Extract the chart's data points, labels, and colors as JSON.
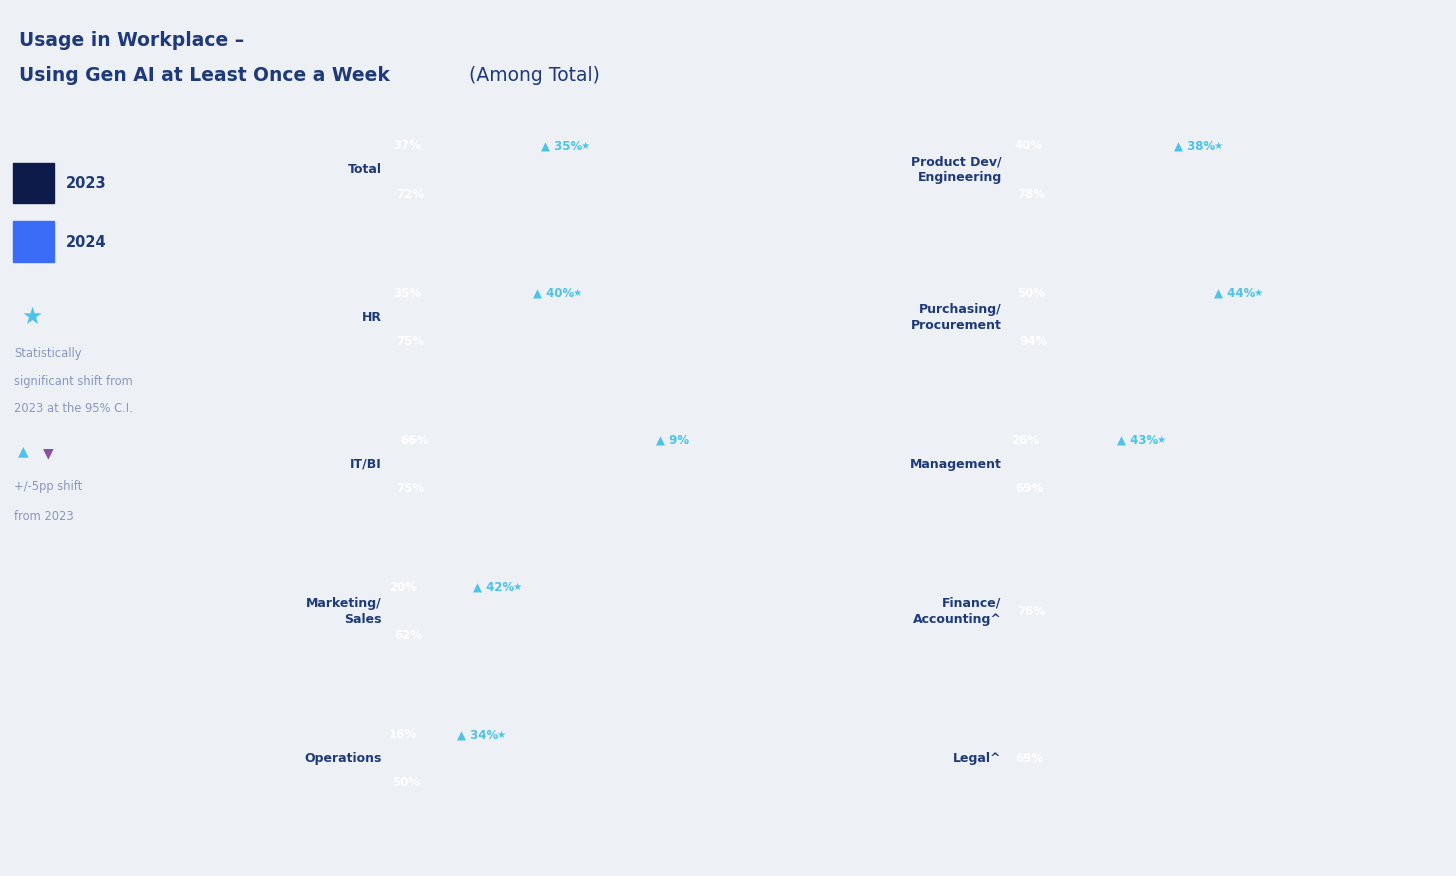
{
  "title_line1": "Usage in Workplace –",
  "title_line2_bold": "Using Gen AI at Least Once a Week",
  "title_line2_light": " (Among Total)",
  "bg_color": "#edf0f5",
  "chart_bg": "#ffffff",
  "c2023": "#0d1b4b",
  "c2024": "#3b6cf8",
  "cgap": "#dde2ea",
  "ctext": "#1e3a7a",
  "clabel": "#8898c0",
  "csig": "#4dc3e8",
  "cpurple": "#8b4fa0",
  "left_cats": [
    "Total",
    "HR",
    "IT/BI",
    "Marketing/\nSales",
    "Operations"
  ],
  "left_2023": [
    37,
    35,
    66,
    20,
    16
  ],
  "left_2024": [
    72,
    75,
    75,
    62,
    50
  ],
  "left_shift": [
    35,
    40,
    9,
    42,
    34
  ],
  "left_sig": [
    true,
    true,
    false,
    true,
    true
  ],
  "right_cats": [
    "Product Dev/\nEngineering",
    "Purchasing/\nProcurement",
    "Management",
    "Finance/\nAccounting^",
    "Legal^"
  ],
  "right_2023": [
    40,
    50,
    26,
    null,
    null
  ],
  "right_2024": [
    78,
    94,
    69,
    76,
    69
  ],
  "right_shift": [
    38,
    44,
    43,
    null,
    null
  ],
  "right_sig": [
    true,
    true,
    true,
    null,
    null
  ]
}
